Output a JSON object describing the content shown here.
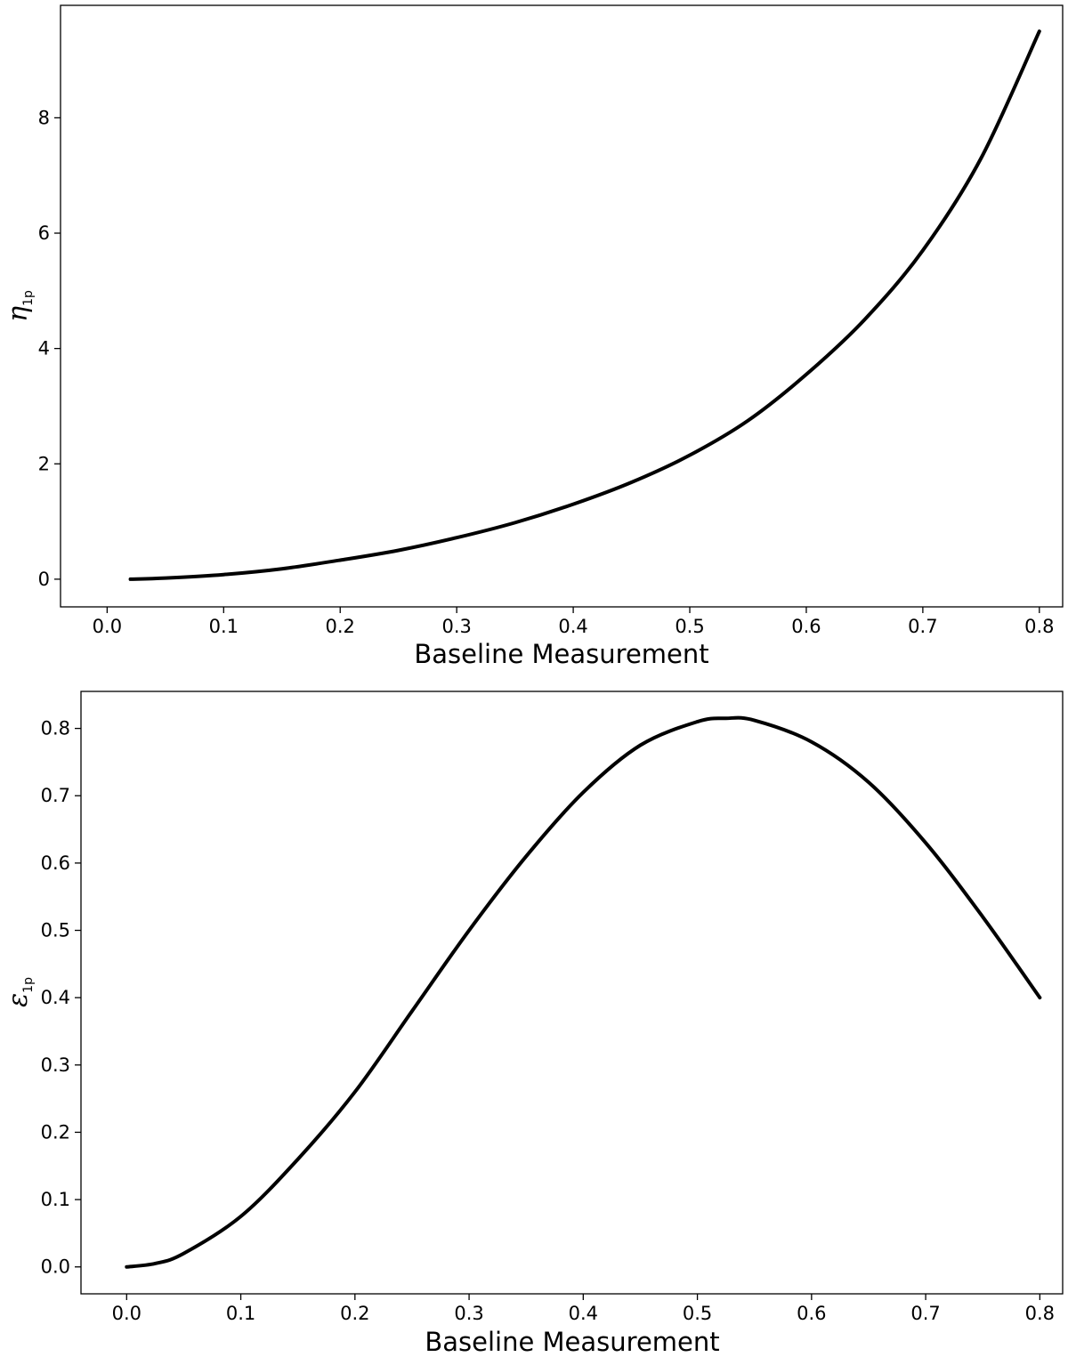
{
  "chart_data": [
    {
      "type": "line",
      "xlabel": "Baseline Measurement",
      "ylabel": {
        "symbol": "η",
        "subscript": "1p"
      },
      "xlim": [
        -0.04,
        0.82
      ],
      "ylim": [
        -0.48,
        9.95
      ],
      "xticks": [
        "0.0",
        "0.1",
        "0.2",
        "0.3",
        "0.4",
        "0.5",
        "0.6",
        "0.7",
        "0.8"
      ],
      "yticks": [
        "0",
        "2",
        "4",
        "6",
        "8"
      ],
      "grid": false,
      "series": [
        {
          "color": "#000000",
          "x": [
            0.02,
            0.05,
            0.1,
            0.15,
            0.2,
            0.25,
            0.3,
            0.35,
            0.4,
            0.45,
            0.5,
            0.55,
            0.6,
            0.65,
            0.7,
            0.75,
            0.8
          ],
          "y": [
            0.0,
            0.02,
            0.08,
            0.18,
            0.33,
            0.5,
            0.72,
            0.98,
            1.3,
            1.68,
            2.15,
            2.75,
            3.55,
            4.5,
            5.7,
            7.3,
            9.5
          ]
        }
      ]
    },
    {
      "type": "line",
      "xlabel": "Baseline Measurement",
      "ylabel": {
        "symbol": "ε",
        "subscript": "1p"
      },
      "xlim": [
        -0.04,
        0.82
      ],
      "ylim": [
        -0.04,
        0.855
      ],
      "xticks": [
        "0.0",
        "0.1",
        "0.2",
        "0.3",
        "0.4",
        "0.5",
        "0.6",
        "0.7",
        "0.8"
      ],
      "yticks": [
        "0.0",
        "0.1",
        "0.2",
        "0.3",
        "0.4",
        "0.5",
        "0.6",
        "0.7",
        "0.8"
      ],
      "grid": false,
      "series": [
        {
          "color": "#000000",
          "x": [
            0.0,
            0.025,
            0.05,
            0.1,
            0.15,
            0.2,
            0.25,
            0.3,
            0.35,
            0.4,
            0.45,
            0.5,
            0.525,
            0.55,
            0.6,
            0.65,
            0.7,
            0.75,
            0.8
          ],
          "y": [
            0.0,
            0.005,
            0.02,
            0.075,
            0.16,
            0.26,
            0.38,
            0.5,
            0.61,
            0.705,
            0.775,
            0.81,
            0.815,
            0.812,
            0.78,
            0.72,
            0.63,
            0.52,
            0.4
          ]
        }
      ]
    }
  ]
}
